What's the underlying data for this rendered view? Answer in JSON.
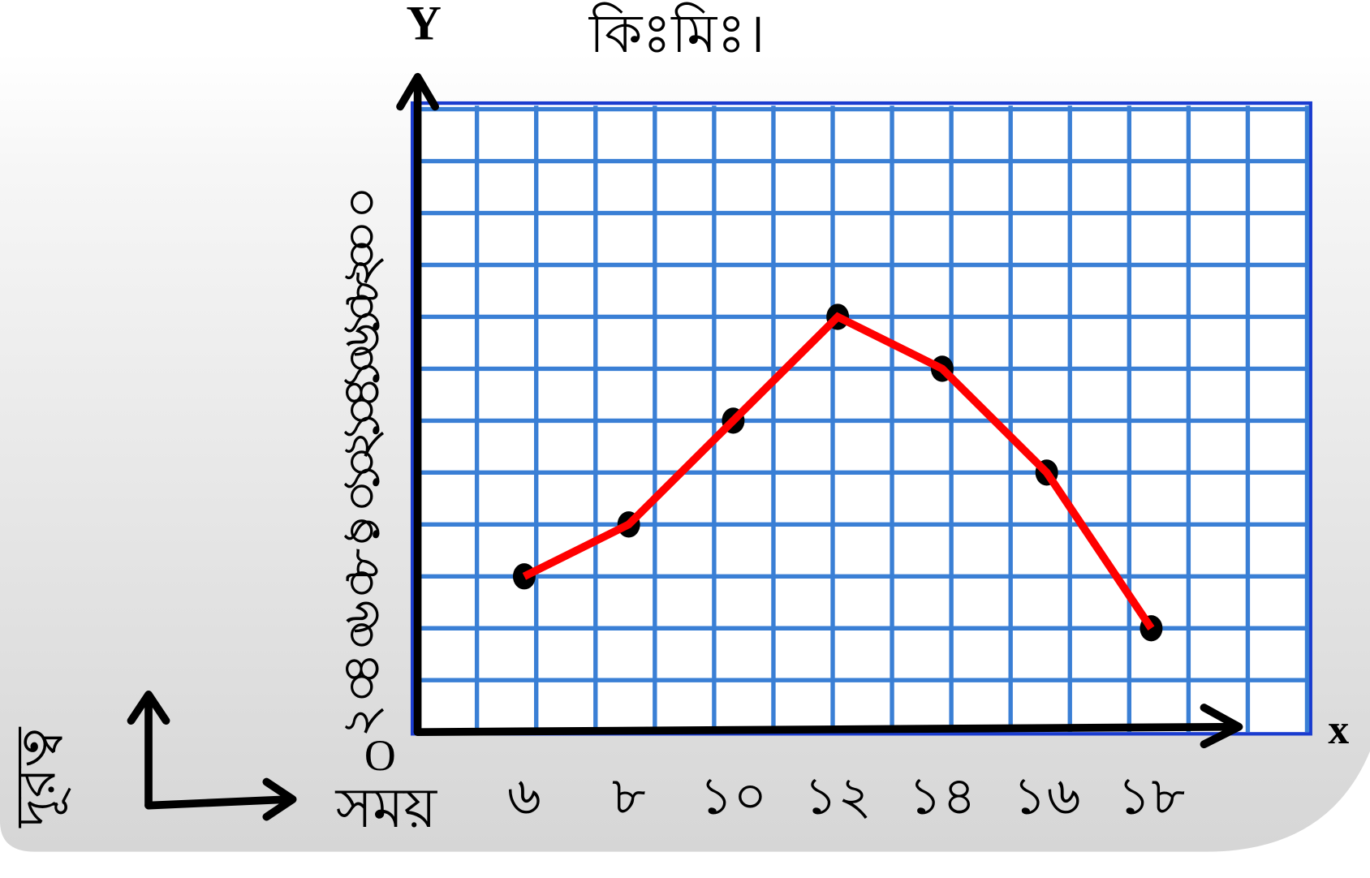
{
  "chart_data": {
    "type": "line",
    "title": "কিঃমিঃ।",
    "y_axis_symbol": "Y",
    "x_axis_symbol": "x",
    "origin_label": "O",
    "x_label": "সময়",
    "y_label": "দূরত্ব",
    "categories": [
      "৬",
      "৮",
      "১০",
      "১২",
      "১৪",
      "১৬",
      "১৮"
    ],
    "series": [
      {
        "name": "দূরত্ব",
        "color": "#ff0000",
        "values": [
          60,
          80,
          120,
          160,
          140,
          100,
          40
        ]
      }
    ],
    "ylim": [
      0,
      240
    ],
    "yticks": [
      {
        "value": 20,
        "label": "২০"
      },
      {
        "value": 40,
        "label": "৪০"
      },
      {
        "value": 60,
        "label": "৬০"
      },
      {
        "value": 80,
        "label": "৮০"
      },
      {
        "value": 100,
        "label": "১০০"
      },
      {
        "value": 120,
        "label": "১২০"
      },
      {
        "value": 140,
        "label": "১৪০"
      },
      {
        "value": 160,
        "label": "১৬০"
      },
      {
        "value": 180,
        "label": "১৮০"
      },
      {
        "value": 200,
        "label": "২০০"
      }
    ],
    "grid": true
  }
}
